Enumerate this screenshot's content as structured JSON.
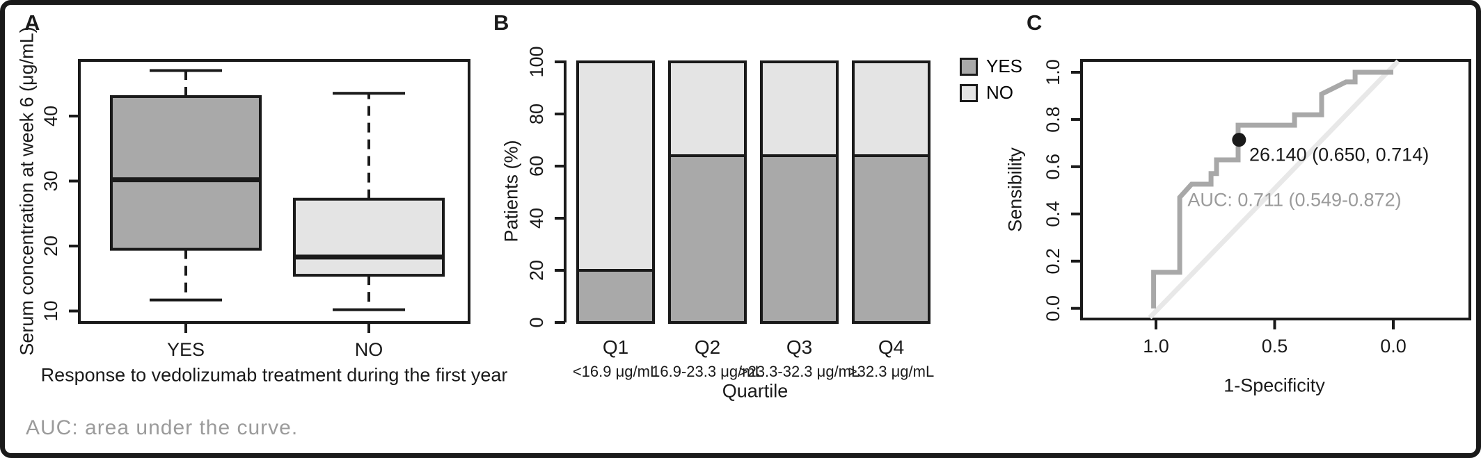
{
  "figure": {
    "footer_note": "AUC: area under the curve.",
    "panel_a_title": "A",
    "panel_b_title": "B",
    "panel_c_title": "C"
  },
  "colors": {
    "stroke": "#1a1a1a",
    "yes_fill": "#a9a9a9",
    "no_fill": "#e4e4e4",
    "roc_curve": "#a8a8a8",
    "diagonal_line": "#e8e8e8",
    "muted_text": "#9b9b9b"
  },
  "chart_data": [
    {
      "type": "boxplot",
      "panel": "A",
      "ylabel": "Serum concentration at week 6 (μg/mL)",
      "xlabel": "Response to vedolizumab treatment during the first year",
      "yticks": [
        10,
        20,
        30,
        40
      ],
      "ylim": [
        8,
        49
      ],
      "groups": [
        {
          "label": "YES",
          "fill_key": "yes_fill",
          "whisker_low": 11.7,
          "q1": 19.5,
          "median": 30.2,
          "q3": 43.0,
          "whisker_high": 47.0
        },
        {
          "label": "NO",
          "fill_key": "no_fill",
          "whisker_low": 10.2,
          "q1": 15.5,
          "median": 18.3,
          "q3": 27.2,
          "whisker_high": 43.5
        }
      ]
    },
    {
      "type": "stacked_bar",
      "panel": "B",
      "ylabel": "Patients (%)",
      "xlabel": "Quartile",
      "yticks": [
        0,
        20,
        40,
        60,
        80,
        100
      ],
      "ylim": [
        0,
        100
      ],
      "categories": [
        "Q1",
        "Q2",
        "Q3",
        "Q4"
      ],
      "sub_labels": [
        "<16.9 μg/mL",
        "16.9-23.3 μg/mL",
        ">23.3-32.3 μg/mL",
        ">32.3 μg/mL"
      ],
      "series": [
        {
          "name": "YES",
          "fill_key": "yes_fill",
          "values": [
            20,
            64,
            64,
            64
          ]
        },
        {
          "name": "NO",
          "fill_key": "no_fill",
          "values": [
            80,
            36,
            36,
            36
          ]
        }
      ],
      "legend": {
        "position": "top-right",
        "entries": [
          "YES",
          "NO"
        ]
      }
    },
    {
      "type": "line",
      "panel": "C",
      "subtype": "roc",
      "ylabel": "Sensibility",
      "xlabel": "1-Specificity",
      "xticks": [
        1.0,
        0.5,
        0.0
      ],
      "xtick_labels": [
        "1.0",
        "0.5",
        "0.0"
      ],
      "yticks": [
        0.0,
        0.2,
        0.4,
        0.6,
        0.8,
        1.0
      ],
      "ytick_labels": [
        "0.0",
        "0.2",
        "0.4",
        "0.6",
        "0.8",
        "1.0"
      ],
      "x_axis_reversed": true,
      "diagonal_reference": true,
      "roc_points": [
        [
          1.01,
          0.0
        ],
        [
          1.01,
          0.153
        ],
        [
          0.9,
          0.153
        ],
        [
          0.9,
          0.47
        ],
        [
          0.85,
          0.526
        ],
        [
          0.768,
          0.526
        ],
        [
          0.768,
          0.571
        ],
        [
          0.745,
          0.571
        ],
        [
          0.745,
          0.629
        ],
        [
          0.654,
          0.629
        ],
        [
          0.654,
          0.776
        ],
        [
          0.416,
          0.776
        ],
        [
          0.416,
          0.82
        ],
        [
          0.302,
          0.82
        ],
        [
          0.302,
          0.908
        ],
        [
          0.199,
          0.959
        ],
        [
          0.161,
          0.959
        ],
        [
          0.161,
          1.0
        ],
        [
          0.0,
          1.0
        ]
      ],
      "optimal_point": {
        "threshold": "26.140",
        "x": 0.65,
        "y": 0.714,
        "label": "26.140 (0.650, 0.714)"
      },
      "auc_label": "AUC: 0.711 (0.549-0.872)"
    }
  ]
}
